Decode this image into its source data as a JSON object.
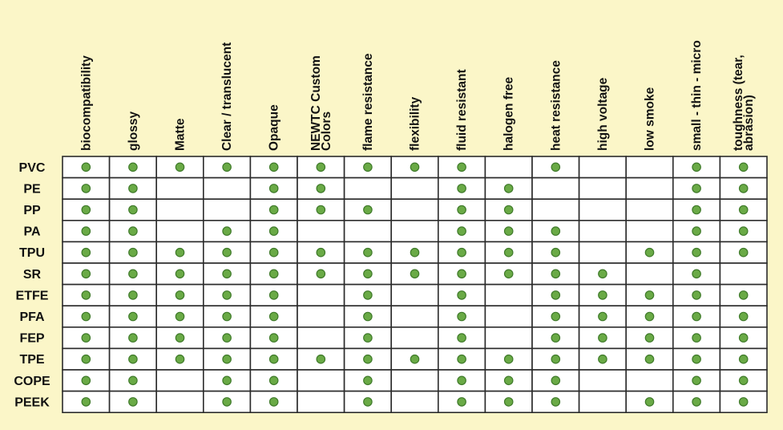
{
  "chart_data": {
    "type": "table",
    "title": "",
    "columns": [
      [
        "biocompatibility"
      ],
      [
        "glossy"
      ],
      [
        "Matte"
      ],
      [
        "Clear / translucent"
      ],
      [
        "Opaque"
      ],
      [
        "NEWTC Custom",
        "Colors"
      ],
      [
        "flame resistance"
      ],
      [
        "flexibility"
      ],
      [
        "fluid resistant"
      ],
      [
        "halogen free"
      ],
      [
        "heat resistance"
      ],
      [
        "high voltage"
      ],
      [
        "low smoke"
      ],
      [
        "small - thin - micro"
      ],
      [
        "toughness (tear,",
        "abrasion)"
      ]
    ],
    "rows": [
      {
        "label": "PVC",
        "values": [
          1,
          1,
          1,
          1,
          1,
          1,
          1,
          1,
          1,
          0,
          1,
          0,
          0,
          1,
          1
        ]
      },
      {
        "label": "PE",
        "values": [
          1,
          1,
          0,
          0,
          1,
          1,
          0,
          0,
          1,
          1,
          0,
          0,
          0,
          1,
          1
        ]
      },
      {
        "label": "PP",
        "values": [
          1,
          1,
          0,
          0,
          1,
          1,
          1,
          0,
          1,
          1,
          0,
          0,
          0,
          1,
          1
        ]
      },
      {
        "label": "PA",
        "values": [
          1,
          1,
          0,
          1,
          1,
          0,
          0,
          0,
          1,
          1,
          1,
          0,
          0,
          1,
          1
        ]
      },
      {
        "label": "TPU",
        "values": [
          1,
          1,
          1,
          1,
          1,
          1,
          1,
          1,
          1,
          1,
          1,
          0,
          1,
          1,
          1
        ]
      },
      {
        "label": "SR",
        "values": [
          1,
          1,
          1,
          1,
          1,
          1,
          1,
          1,
          1,
          1,
          1,
          1,
          0,
          1,
          0
        ]
      },
      {
        "label": "ETFE",
        "values": [
          1,
          1,
          1,
          1,
          1,
          0,
          1,
          0,
          1,
          0,
          1,
          1,
          1,
          1,
          1
        ]
      },
      {
        "label": "PFA",
        "values": [
          1,
          1,
          1,
          1,
          1,
          0,
          1,
          0,
          1,
          0,
          1,
          1,
          1,
          1,
          1
        ]
      },
      {
        "label": "FEP",
        "values": [
          1,
          1,
          1,
          1,
          1,
          0,
          1,
          0,
          1,
          0,
          1,
          1,
          1,
          1,
          1
        ]
      },
      {
        "label": "TPE",
        "values": [
          1,
          1,
          1,
          1,
          1,
          1,
          1,
          1,
          1,
          1,
          1,
          1,
          1,
          1,
          1
        ]
      },
      {
        "label": "COPE",
        "values": [
          1,
          1,
          0,
          1,
          1,
          0,
          1,
          0,
          1,
          1,
          1,
          0,
          0,
          1,
          1
        ]
      },
      {
        "label": "PEEK",
        "values": [
          1,
          1,
          0,
          1,
          1,
          0,
          1,
          0,
          1,
          1,
          1,
          0,
          1,
          1,
          1
        ]
      }
    ],
    "colors": {
      "background": "#fbf6c8",
      "cell": "#ffffff",
      "grid": "#2b2b2b",
      "dot_fill": "#6aaa46",
      "dot_stroke": "#3f7a2a"
    }
  }
}
